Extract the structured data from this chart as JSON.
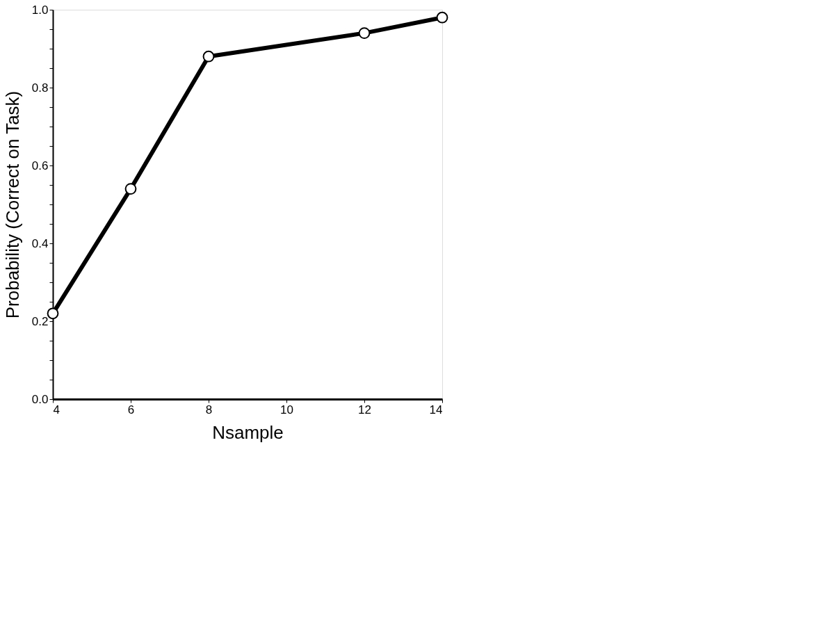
{
  "chart_data": {
    "type": "line",
    "xlabel": "Nsample",
    "ylabel": "Probability (Correct on Task)",
    "x": [
      4,
      6,
      8,
      12,
      14
    ],
    "series": [
      {
        "color": "#000000",
        "values": [
          0.22,
          0.54,
          0.88,
          0.94,
          0.98
        ]
      }
    ],
    "xlim": [
      4,
      14
    ],
    "xticks": [
      4,
      6,
      8,
      10,
      12,
      14
    ],
    "ylim": [
      0,
      1
    ],
    "yticks": [
      {
        "value": 0,
        "label": "0.0"
      },
      {
        "value": 0.05,
        "label": null
      },
      {
        "value": 0.1,
        "label": null
      },
      {
        "value": 0.15,
        "label": null
      },
      {
        "value": 0.2,
        "label": "0.2"
      },
      {
        "value": 0.25,
        "label": null
      },
      {
        "value": 0.3,
        "label": null
      },
      {
        "value": 0.35,
        "label": null
      },
      {
        "value": 0.4,
        "label": "0.4"
      },
      {
        "value": 0.45,
        "label": null
      },
      {
        "value": 0.5,
        "label": null
      },
      {
        "value": 0.55,
        "label": null
      },
      {
        "value": 0.6,
        "label": "0.6"
      },
      {
        "value": 0.65,
        "label": null
      },
      {
        "value": 0.7,
        "label": null
      },
      {
        "value": 0.75,
        "label": null
      },
      {
        "value": 0.8,
        "label": "0.8"
      },
      {
        "value": 0.85,
        "label": null
      },
      {
        "value": 0.9,
        "label": null
      },
      {
        "value": 0.95,
        "label": null
      },
      {
        "value": 1,
        "label": "1.0"
      }
    ],
    "marker": "circle",
    "line_style": "solid",
    "grid": false
  }
}
